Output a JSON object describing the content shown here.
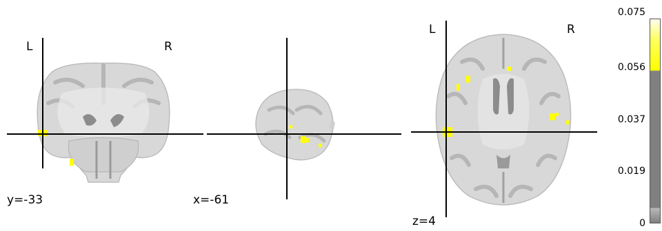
{
  "coronal": {
    "left_label": "L",
    "right_label": "R",
    "coord_label": "y=-33"
  },
  "sagittal": {
    "coord_label": "x=-61"
  },
  "axial": {
    "left_label": "L",
    "right_label": "R",
    "coord_label": "z=4"
  },
  "colorbar": {
    "ticks": [
      "0.075",
      "0.056",
      "0.037",
      "0.019",
      "0"
    ],
    "colors": {
      "high": "#ffff00",
      "mid": "#808080",
      "low": "#808080"
    }
  },
  "colors": {
    "brain_light": "#d8d8d8",
    "brain_mid": "#b4b4b4",
    "brain_dark": "#8c8c8c",
    "activation": "#ffff00",
    "crosshair": "#000000"
  }
}
